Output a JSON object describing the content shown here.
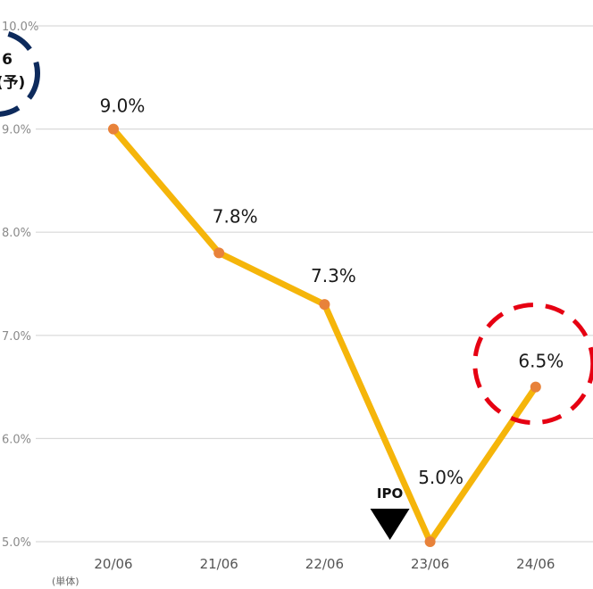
{
  "chart_data": {
    "type": "line",
    "categories": [
      "20/06",
      "21/06",
      "22/06",
      "23/06",
      "24/06"
    ],
    "values": [
      9.0,
      7.8,
      7.3,
      5.0,
      6.5
    ],
    "data_labels": [
      "9.0%",
      "7.8%",
      "7.3%",
      "5.0%",
      "6.5%"
    ],
    "ylim": [
      5.0,
      10.0
    ],
    "yticks": [
      5.0,
      6.0,
      7.0,
      8.0,
      9.0,
      10.0
    ],
    "ytick_labels": [
      "5.0%",
      "6.0%",
      "7.0%",
      "8.0%",
      "9.0%",
      "10.0%"
    ],
    "grid": true,
    "line_color": "#f5b50a",
    "marker_color": "#e8823a",
    "x_note": "(単体)",
    "annotations": {
      "ipo": {
        "label": "IPO",
        "between": [
          "22/06",
          "23/06"
        ]
      },
      "highlight": {
        "category": "24/06",
        "style": "dashed-circle",
        "color": "#e60012"
      },
      "corner_badge": {
        "lines": [
          "6",
          "(予)"
        ],
        "color": "#0d2a5c"
      }
    }
  }
}
